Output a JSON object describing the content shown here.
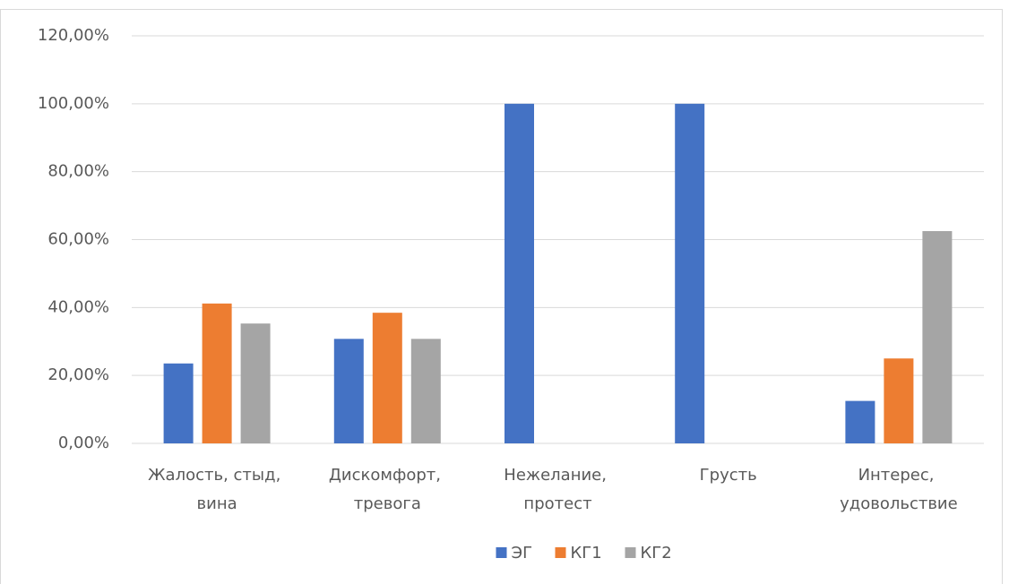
{
  "chart_data": {
    "type": "bar",
    "categories": [
      "Жалость, стыд, вина",
      "Дискомфорт, тревога",
      "Нежелание, протест",
      "Грусть",
      "Интерес, удовольствие"
    ],
    "series": [
      {
        "name": "ЭГ",
        "color": "#4472c4",
        "values": [
          23.53,
          30.77,
          100,
          100,
          12.5
        ]
      },
      {
        "name": "КГ1",
        "color": "#ed7d31",
        "values": [
          41.18,
          38.46,
          0,
          0,
          25
        ]
      },
      {
        "name": "КГ2",
        "color": "#a5a5a5",
        "values": [
          35.29,
          30.77,
          0,
          0,
          62.5
        ]
      }
    ],
    "ylim": [
      0,
      120
    ],
    "yticks": [
      {
        "value": 0,
        "label": "0,00%"
      },
      {
        "value": 20,
        "label": "20,00%"
      },
      {
        "value": 40,
        "label": "40,00%"
      },
      {
        "value": 60,
        "label": "60,00%"
      },
      {
        "value": 80,
        "label": "80,00%"
      },
      {
        "value": 100,
        "label": "100,00%"
      },
      {
        "value": 120,
        "label": "120,00%"
      }
    ],
    "grid": true,
    "legend": "bottom"
  }
}
